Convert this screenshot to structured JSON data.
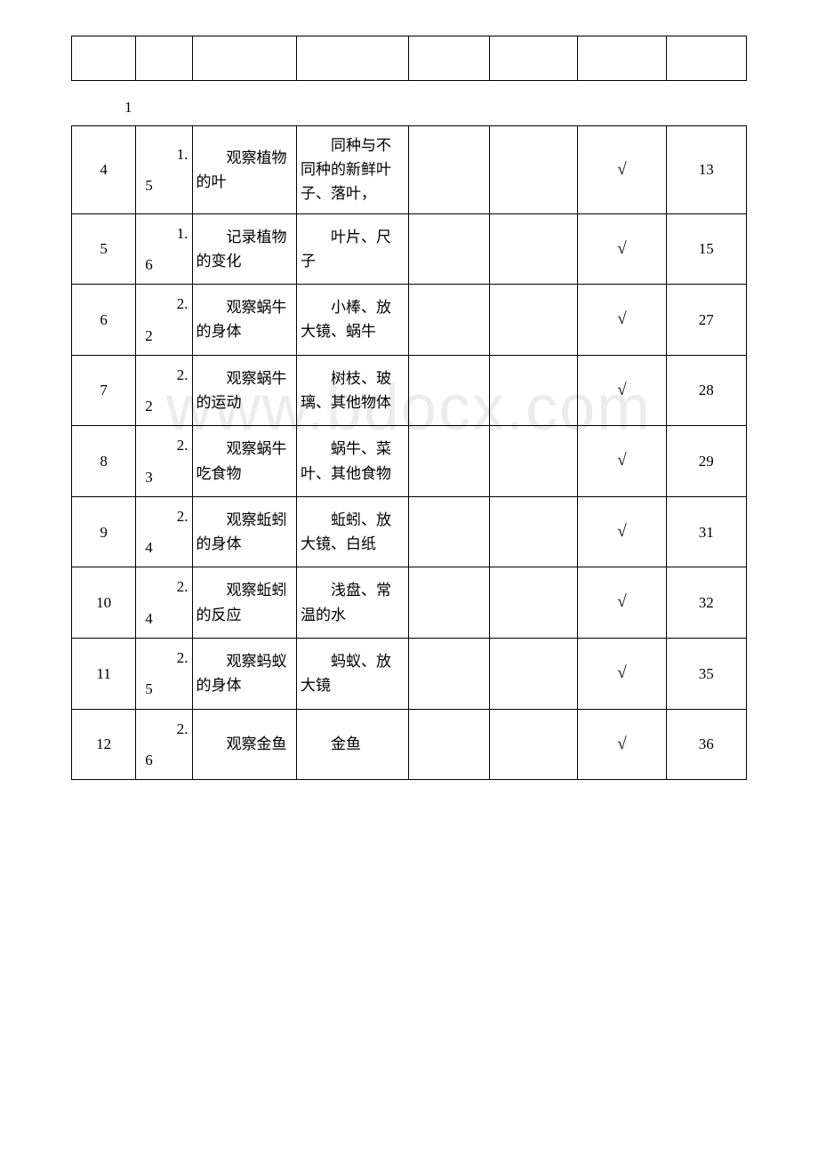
{
  "watermark": "www.bdocx.com",
  "page_label": "1",
  "header_row": [
    "",
    "",
    "",
    "",
    "",
    "",
    "",
    ""
  ],
  "rows": [
    {
      "seq": "4",
      "chapter_num": "1.",
      "chapter_sub": "5",
      "exp_name": "观察植物的叶",
      "materials": "同种与不同种的新鲜叶子、落叶，",
      "c4": "",
      "c5": "",
      "check": "√",
      "page": "13"
    },
    {
      "seq": "5",
      "chapter_num": "1.",
      "chapter_sub": "6",
      "exp_name": "记录植物的变化",
      "materials": "叶片、尺子",
      "c4": "",
      "c5": "",
      "check": "√",
      "page": "15"
    },
    {
      "seq": "6",
      "chapter_num": "2.",
      "chapter_sub": "2",
      "exp_name": "观察蜗牛的身体",
      "materials": "小棒、放大镜、蜗牛",
      "c4": "",
      "c5": "",
      "check": "√",
      "page": "27"
    },
    {
      "seq": "7",
      "chapter_num": "2.",
      "chapter_sub": "2",
      "exp_name": "观察蜗牛的运动",
      "materials": "树枝、玻璃、其他物体",
      "c4": "",
      "c5": "",
      "check": "√",
      "page": "28"
    },
    {
      "seq": "8",
      "chapter_num": "2.",
      "chapter_sub": "3",
      "exp_name": "观察蜗牛吃食物",
      "materials": "蜗牛、菜叶、其他食物",
      "c4": "",
      "c5": "",
      "check": "√",
      "page": "29"
    },
    {
      "seq": "9",
      "chapter_num": "2.",
      "chapter_sub": "4",
      "exp_name": "观察蚯蚓的身体",
      "materials": "蚯蚓、放大镜、白纸",
      "c4": "",
      "c5": "",
      "check": "√",
      "page": "31"
    },
    {
      "seq": "10",
      "chapter_num": "2.",
      "chapter_sub": "4",
      "exp_name": "观察蚯蚓的反应",
      "materials": "浅盘、常温的水",
      "c4": "",
      "c5": "",
      "check": "√",
      "page": "32"
    },
    {
      "seq": "11",
      "chapter_num": "2.",
      "chapter_sub": "5",
      "exp_name": "观察蚂蚁的身体",
      "materials": "蚂蚁、放大镜",
      "c4": "",
      "c5": "",
      "check": "√",
      "page": "35"
    },
    {
      "seq": "12",
      "chapter_num": "2.",
      "chapter_sub": "6",
      "exp_name": "观察金鱼",
      "materials": "金鱼",
      "c4": "",
      "c5": "",
      "check": "√",
      "page": "36"
    }
  ]
}
